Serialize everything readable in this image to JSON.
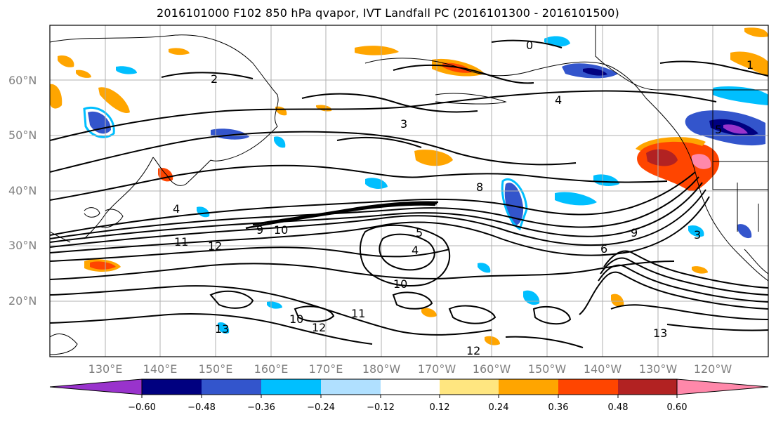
{
  "title": "2016101000 F102 850 hPa qvapor, IVT Landfall PC (2016101300 - 2016101500)",
  "map": {
    "lat_labels": [
      {
        "lat": 60,
        "text": "60°N"
      },
      {
        "lat": 50,
        "text": "50°N"
      },
      {
        "lat": 40,
        "text": "40°N"
      },
      {
        "lat": 30,
        "text": "30°N"
      },
      {
        "lat": 20,
        "text": "20°N"
      }
    ],
    "lon_labels": [
      {
        "lon": 130,
        "text": "130°E"
      },
      {
        "lon": 140,
        "text": "140°E"
      },
      {
        "lon": 150,
        "text": "150°E"
      },
      {
        "lon": 160,
        "text": "160°E"
      },
      {
        "lon": 170,
        "text": "170°E"
      },
      {
        "lon": 180,
        "text": "180°W"
      },
      {
        "lon": 190,
        "text": "170°W"
      },
      {
        "lon": 200,
        "text": "160°W"
      },
      {
        "lon": 210,
        "text": "150°W"
      },
      {
        "lon": 220,
        "text": "140°W"
      },
      {
        "lon": 230,
        "text": "130°W"
      },
      {
        "lon": 240,
        "text": "120°W"
      }
    ],
    "contour_labels": [
      "0",
      "1",
      "2",
      "3",
      "3",
      "4",
      "4",
      "4",
      "5",
      "5",
      "6",
      "8",
      "9",
      "9",
      "10",
      "10",
      "10",
      "11",
      "11",
      "12",
      "12",
      "12",
      "13",
      "13"
    ]
  },
  "colorbar": {
    "colors": [
      "#9933cc",
      "#000080",
      "#3355cc",
      "#00bfff",
      "#b0e0ff",
      "#ffffff",
      "#ffe680",
      "#ffa500",
      "#ff4500",
      "#b22222",
      "#ff88aa"
    ],
    "tick_labels": [
      "−0.60",
      "−0.48",
      "−0.36",
      "−0.24",
      "−0.12",
      "0.12",
      "0.24",
      "0.36",
      "0.48",
      "0.60"
    ]
  }
}
